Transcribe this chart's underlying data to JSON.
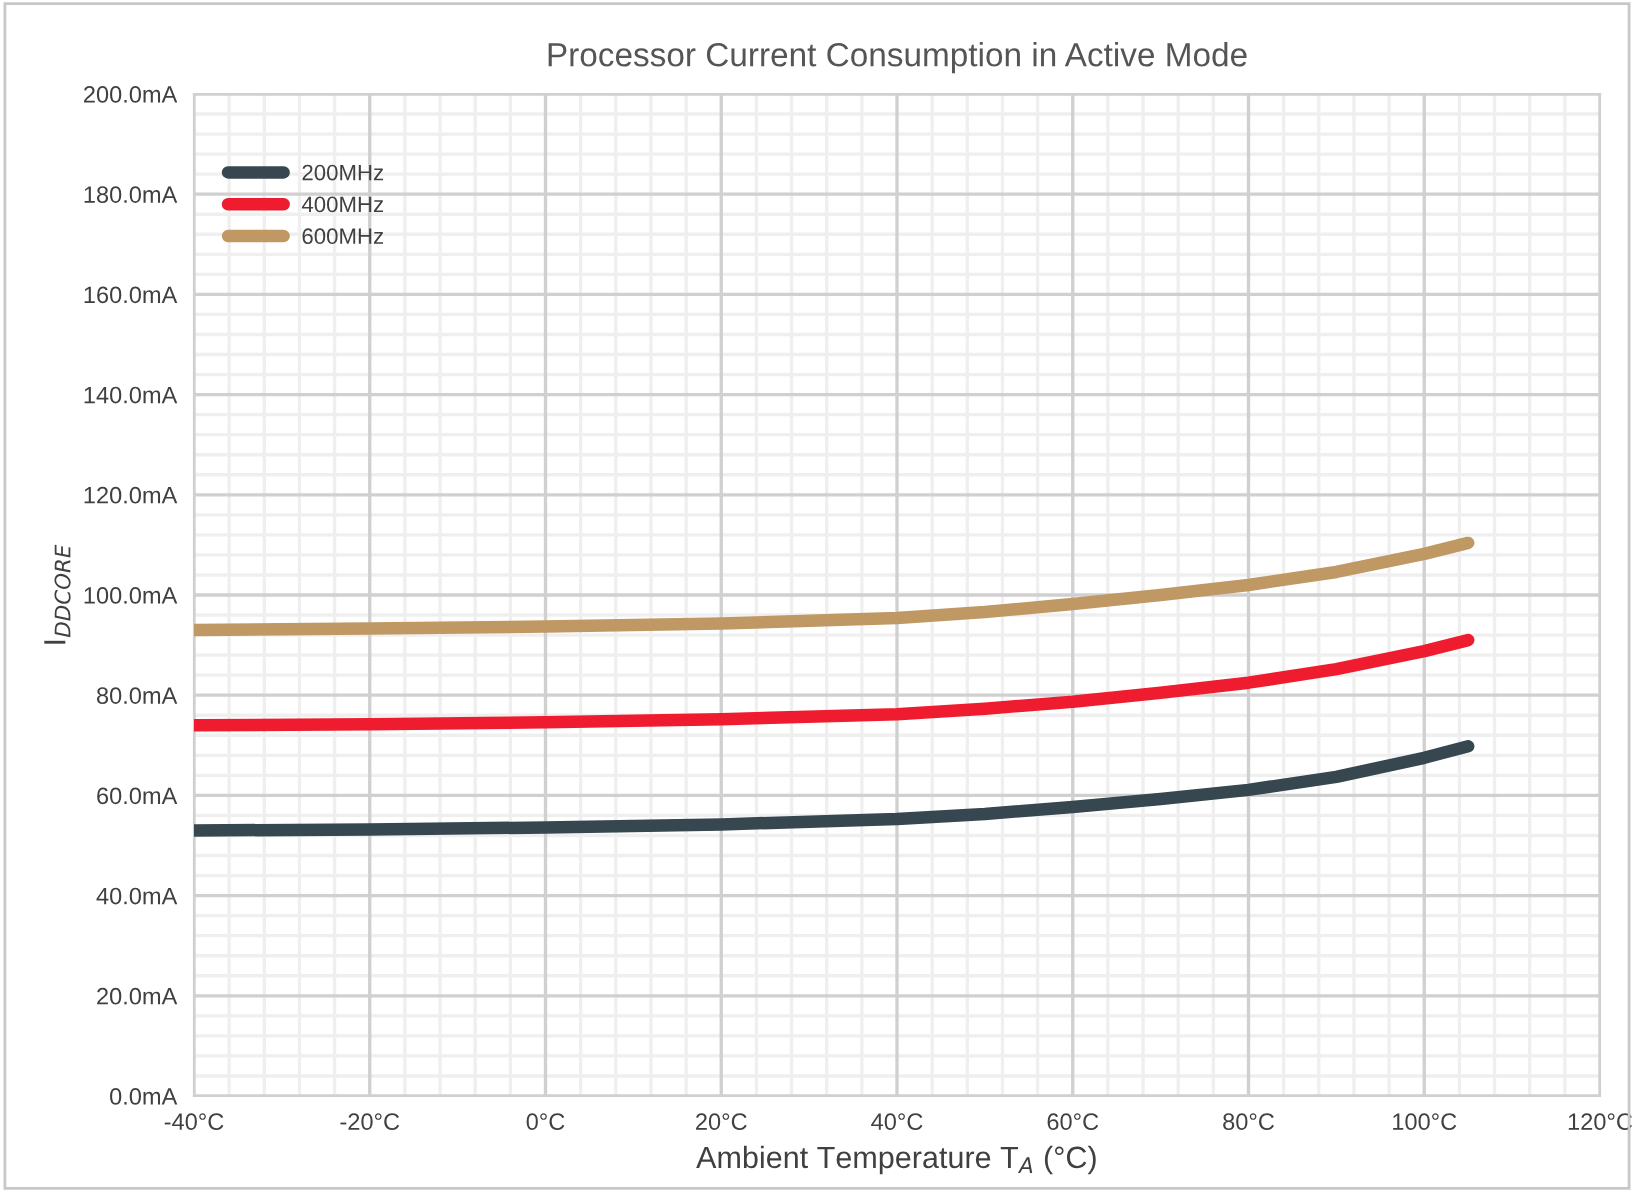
{
  "chart_data": {
    "type": "line",
    "title": "Processor Current Consumption in Active Mode",
    "xlabel": "Ambient Temperature T$_{A}$ (°C)",
    "ylabel": "I$_{DDCORE}$",
    "x": [
      -40,
      -20,
      0,
      20,
      40,
      50,
      60,
      70,
      80,
      90,
      100,
      105
    ],
    "series": [
      {
        "name": "200MHz",
        "color": "#36474f",
        "values": [
          53,
          53.2,
          53.6,
          54.2,
          55.3,
          56.3,
          57.7,
          59.3,
          61.1,
          63.7,
          67.5,
          69.8
        ]
      },
      {
        "name": "400MHz",
        "color": "#ee1c2e",
        "values": [
          74,
          74.2,
          74.6,
          75.2,
          76.2,
          77.3,
          78.7,
          80.5,
          82.5,
          85.2,
          88.8,
          91
        ]
      },
      {
        "name": "600MHz",
        "color": "#bf9864",
        "values": [
          93,
          93.3,
          93.7,
          94.3,
          95.4,
          96.6,
          98.2,
          100,
          102,
          104.6,
          108.2,
          110.4
        ]
      }
    ],
    "xlim": [
      -40,
      120
    ],
    "xticks": [
      {
        "value": -40,
        "label": "-40°C"
      },
      {
        "value": -20,
        "label": "-20°C"
      },
      {
        "value": 0,
        "label": "0°C"
      },
      {
        "value": 20,
        "label": "20°C"
      },
      {
        "value": 40,
        "label": "40°C"
      },
      {
        "value": 60,
        "label": "60°C"
      },
      {
        "value": 80,
        "label": "80°C"
      },
      {
        "value": 100,
        "label": "100°C"
      },
      {
        "value": 120,
        "label": "120°C"
      }
    ],
    "ylim": [
      0,
      200
    ],
    "yticks": [
      {
        "value": 0,
        "label": "0.0mA"
      },
      {
        "value": 20,
        "label": "20.0mA"
      },
      {
        "value": 40,
        "label": "40.0mA"
      },
      {
        "value": 60,
        "label": "60.0mA"
      },
      {
        "value": 80,
        "label": "80.0mA"
      },
      {
        "value": 100,
        "label": "100.0mA"
      },
      {
        "value": 120,
        "label": "120.0mA"
      },
      {
        "value": 140,
        "label": "140.0mA"
      },
      {
        "value": 160,
        "label": "160.0mA"
      },
      {
        "value": 180,
        "label": "180.0mA"
      },
      {
        "value": 200,
        "label": "200.0mA"
      }
    ],
    "grid": true,
    "legend": "top left",
    "marker": "none",
    "line_style": "solid"
  }
}
